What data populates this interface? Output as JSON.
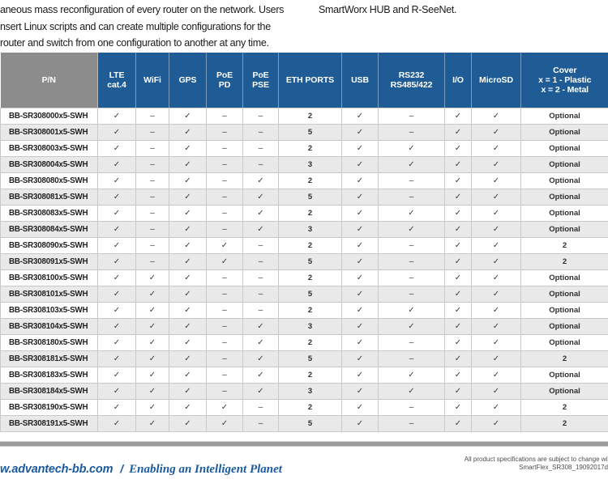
{
  "intro": {
    "left_lines": [
      "aneous mass reconfiguration of every router on the network. Users",
      "nsert Linux scripts and can create multiple configurations for the",
      "router and switch from one configuration to another at any time."
    ],
    "right_line": "SmartWorx HUB and R-SeeNet."
  },
  "table": {
    "headers": [
      "P/N",
      "LTE\ncat.4",
      "WiFi",
      "GPS",
      "PoE\nPD",
      "PoE\nPSE",
      "ETH PORTS",
      "USB",
      "RS232\nRS485/422",
      "I/O",
      "MicroSD",
      "Cover\nx = 1 - Plastic\nx = 2 - Metal"
    ],
    "rows": [
      [
        "BB-SR308000x5-SWH",
        "✓",
        "–",
        "✓",
        "–",
        "–",
        "2",
        "✓",
        "–",
        "✓",
        "✓",
        "Optional"
      ],
      [
        "BB-SR308001x5-SWH",
        "✓",
        "–",
        "✓",
        "–",
        "–",
        "5",
        "✓",
        "–",
        "✓",
        "✓",
        "Optional"
      ],
      [
        "BB-SR308003x5-SWH",
        "✓",
        "–",
        "✓",
        "–",
        "–",
        "2",
        "✓",
        "✓",
        "✓",
        "✓",
        "Optional"
      ],
      [
        "BB-SR308004x5-SWH",
        "✓",
        "–",
        "✓",
        "–",
        "–",
        "3",
        "✓",
        "✓",
        "✓",
        "✓",
        "Optional"
      ],
      [
        "BB-SR308080x5-SWH",
        "✓",
        "–",
        "✓",
        "–",
        "✓",
        "2",
        "✓",
        "–",
        "✓",
        "✓",
        "Optional"
      ],
      [
        "BB-SR308081x5-SWH",
        "✓",
        "–",
        "✓",
        "–",
        "✓",
        "5",
        "✓",
        "–",
        "✓",
        "✓",
        "Optional"
      ],
      [
        "BB-SR308083x5-SWH",
        "✓",
        "–",
        "✓",
        "–",
        "✓",
        "2",
        "✓",
        "✓",
        "✓",
        "✓",
        "Optional"
      ],
      [
        "BB-SR308084x5-SWH",
        "✓",
        "–",
        "✓",
        "–",
        "✓",
        "3",
        "✓",
        "✓",
        "✓",
        "✓",
        "Optional"
      ],
      [
        "BB-SR308090x5-SWH",
        "✓",
        "–",
        "✓",
        "✓",
        "–",
        "2",
        "✓",
        "–",
        "✓",
        "✓",
        "2"
      ],
      [
        "BB-SR308091x5-SWH",
        "✓",
        "–",
        "✓",
        "✓",
        "–",
        "5",
        "✓",
        "–",
        "✓",
        "✓",
        "2"
      ],
      [
        "BB-SR308100x5-SWH",
        "✓",
        "✓",
        "✓",
        "–",
        "–",
        "2",
        "✓",
        "–",
        "✓",
        "✓",
        "Optional"
      ],
      [
        "BB-SR308101x5-SWH",
        "✓",
        "✓",
        "✓",
        "–",
        "–",
        "5",
        "✓",
        "–",
        "✓",
        "✓",
        "Optional"
      ],
      [
        "BB-SR308103x5-SWH",
        "✓",
        "✓",
        "✓",
        "–",
        "–",
        "2",
        "✓",
        "✓",
        "✓",
        "✓",
        "Optional"
      ],
      [
        "BB-SR308104x5-SWH",
        "✓",
        "✓",
        "✓",
        "–",
        "✓",
        "3",
        "✓",
        "✓",
        "✓",
        "✓",
        "Optional"
      ],
      [
        "BB-SR308180x5-SWH",
        "✓",
        "✓",
        "✓",
        "–",
        "✓",
        "2",
        "✓",
        "–",
        "✓",
        "✓",
        "Optional"
      ],
      [
        "BB-SR308181x5-SWH",
        "✓",
        "✓",
        "✓",
        "–",
        "✓",
        "5",
        "✓",
        "–",
        "✓",
        "✓",
        "2"
      ],
      [
        "BB-SR308183x5-SWH",
        "✓",
        "✓",
        "✓",
        "–",
        "✓",
        "2",
        "✓",
        "✓",
        "✓",
        "✓",
        "Optional"
      ],
      [
        "BB-SR308184x5-SWH",
        "✓",
        "✓",
        "✓",
        "–",
        "✓",
        "3",
        "✓",
        "✓",
        "✓",
        "✓",
        "Optional"
      ],
      [
        "BB-SR308190x5-SWH",
        "✓",
        "✓",
        "✓",
        "✓",
        "–",
        "2",
        "✓",
        "–",
        "✓",
        "✓",
        "2"
      ],
      [
        "BB-SR308191x5-SWH",
        "✓",
        "✓",
        "✓",
        "✓",
        "–",
        "5",
        "✓",
        "–",
        "✓",
        "✓",
        "2"
      ]
    ]
  },
  "footer": {
    "website": "w.advantech-bb.com",
    "separator": "/",
    "tagline": "Enabling an Intelligent Planet",
    "note_line1": "All product specifications are subject to change with",
    "note_line2": "SmartFlex_SR308_19092017d"
  },
  "colors": {
    "header_blue": "#1f5c96",
    "pn_header_gray": "#8c8c8c",
    "row_stripe": "#e9e9e9",
    "brand_blue": "#1a5a9e"
  }
}
